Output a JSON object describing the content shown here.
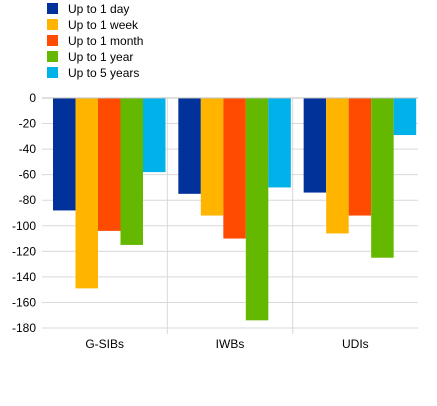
{
  "chart_data": {
    "type": "bar",
    "title": "",
    "xlabel": "",
    "ylabel": "",
    "categories": [
      "G-SIBs",
      "IWBs",
      "UDIs"
    ],
    "series": [
      {
        "name": "Up to 1 day",
        "color": "#003299",
        "values": [
          -88,
          -75,
          -74
        ]
      },
      {
        "name": "Up to 1 week",
        "color": "#FFB400",
        "values": [
          -149,
          -92,
          -106
        ]
      },
      {
        "name": "Up to 1 month",
        "color": "#FF4B00",
        "values": [
          -104,
          -110,
          -92
        ]
      },
      {
        "name": "Up to 1 year",
        "color": "#65B800",
        "values": [
          -115,
          -174,
          -125
        ]
      },
      {
        "name": "Up to 5 years",
        "color": "#00B1EA",
        "values": [
          -58,
          -70,
          -29
        ]
      }
    ],
    "ylim": [
      -180,
      0
    ],
    "yticks": [
      0,
      -20,
      -40,
      -60,
      -80,
      -100,
      -120,
      -140,
      -160,
      -180
    ],
    "grid": true,
    "legend_position": "top-left"
  }
}
